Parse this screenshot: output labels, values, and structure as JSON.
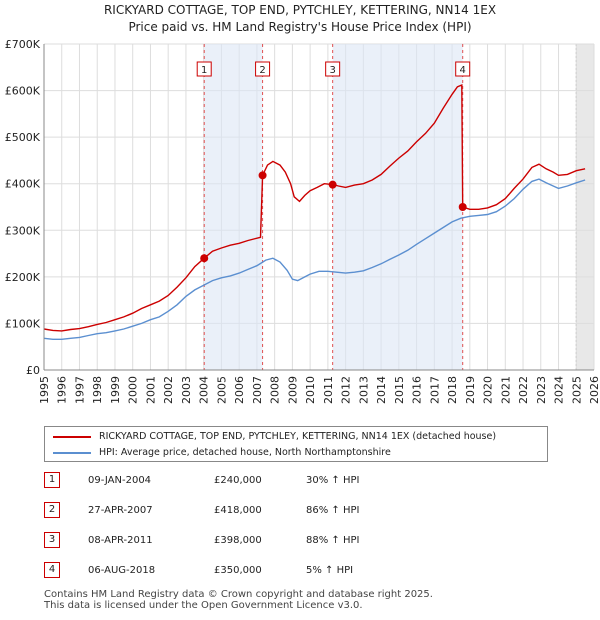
{
  "chart_data": {
    "type": "line",
    "title": "RICKYARD COTTAGE, TOP END, PYTCHLEY, KETTERING, NN14 1EX",
    "subtitle": "Price paid vs. HM Land Registry's House Price Index (HPI)",
    "xlim": [
      1995,
      2026
    ],
    "ylim": [
      0,
      700000
    ],
    "x_ticks": [
      1995,
      1996,
      1997,
      1998,
      1999,
      2000,
      2001,
      2002,
      2003,
      2004,
      2005,
      2006,
      2007,
      2008,
      2009,
      2010,
      2011,
      2012,
      2013,
      2014,
      2015,
      2016,
      2017,
      2018,
      2019,
      2020,
      2021,
      2022,
      2023,
      2024,
      2025,
      2026
    ],
    "y_ticks": [
      0,
      100000,
      200000,
      300000,
      400000,
      500000,
      600000,
      700000
    ],
    "y_tick_labels": [
      "£0",
      "£100K",
      "£200K",
      "£300K",
      "£400K",
      "£500K",
      "£600K",
      "£700K"
    ],
    "grid": true,
    "series": [
      {
        "name": "RICKYARD COTTAGE, TOP END, PYTCHLEY, KETTERING, NN14 1EX (detached house)",
        "color": "#cc0000",
        "points": [
          [
            1995.0,
            88000
          ],
          [
            1995.5,
            85000
          ],
          [
            1996.0,
            84000
          ],
          [
            1996.5,
            87000
          ],
          [
            1997.0,
            89000
          ],
          [
            1997.5,
            93000
          ],
          [
            1998.0,
            98000
          ],
          [
            1998.5,
            102000
          ],
          [
            1999.0,
            108000
          ],
          [
            1999.5,
            114000
          ],
          [
            2000.0,
            122000
          ],
          [
            2000.5,
            132000
          ],
          [
            2001.0,
            140000
          ],
          [
            2001.5,
            148000
          ],
          [
            2002.0,
            160000
          ],
          [
            2002.5,
            178000
          ],
          [
            2003.0,
            198000
          ],
          [
            2003.5,
            222000
          ],
          [
            2004.03,
            240000
          ],
          [
            2004.5,
            255000
          ],
          [
            2005.0,
            262000
          ],
          [
            2005.5,
            268000
          ],
          [
            2006.0,
            272000
          ],
          [
            2006.5,
            278000
          ],
          [
            2007.2,
            285000
          ],
          [
            2007.32,
            418000
          ],
          [
            2007.6,
            440000
          ],
          [
            2007.9,
            448000
          ],
          [
            2008.3,
            440000
          ],
          [
            2008.6,
            425000
          ],
          [
            2008.9,
            400000
          ],
          [
            2009.1,
            372000
          ],
          [
            2009.4,
            362000
          ],
          [
            2009.7,
            375000
          ],
          [
            2010.0,
            385000
          ],
          [
            2010.4,
            392000
          ],
          [
            2010.8,
            400000
          ],
          [
            2011.27,
            398000
          ],
          [
            2011.6,
            395000
          ],
          [
            2012.0,
            392000
          ],
          [
            2012.5,
            397000
          ],
          [
            2013.0,
            400000
          ],
          [
            2013.5,
            408000
          ],
          [
            2014.0,
            420000
          ],
          [
            2014.5,
            438000
          ],
          [
            2015.0,
            455000
          ],
          [
            2015.5,
            470000
          ],
          [
            2016.0,
            490000
          ],
          [
            2016.5,
            508000
          ],
          [
            2017.0,
            530000
          ],
          [
            2017.5,
            562000
          ],
          [
            2018.0,
            592000
          ],
          [
            2018.3,
            608000
          ],
          [
            2018.55,
            612000
          ],
          [
            2018.6,
            350000
          ],
          [
            2019.0,
            345000
          ],
          [
            2019.5,
            345000
          ],
          [
            2020.0,
            348000
          ],
          [
            2020.5,
            355000
          ],
          [
            2021.0,
            368000
          ],
          [
            2021.5,
            390000
          ],
          [
            2022.0,
            410000
          ],
          [
            2022.5,
            435000
          ],
          [
            2022.9,
            442000
          ],
          [
            2023.3,
            432000
          ],
          [
            2023.7,
            425000
          ],
          [
            2024.0,
            418000
          ],
          [
            2024.5,
            420000
          ],
          [
            2025.0,
            428000
          ],
          [
            2025.5,
            432000
          ]
        ]
      },
      {
        "name": "HPI: Average price, detached house, North Northamptonshire",
        "color": "#5b8fd0",
        "points": [
          [
            1995.0,
            68000
          ],
          [
            1995.5,
            66000
          ],
          [
            1996.0,
            66000
          ],
          [
            1996.5,
            68000
          ],
          [
            1997.0,
            70000
          ],
          [
            1997.5,
            74000
          ],
          [
            1998.0,
            78000
          ],
          [
            1998.5,
            80000
          ],
          [
            1999.0,
            84000
          ],
          [
            1999.5,
            88000
          ],
          [
            2000.0,
            94000
          ],
          [
            2000.5,
            100000
          ],
          [
            2001.0,
            108000
          ],
          [
            2001.5,
            114000
          ],
          [
            2002.0,
            126000
          ],
          [
            2002.5,
            140000
          ],
          [
            2003.0,
            158000
          ],
          [
            2003.5,
            172000
          ],
          [
            2004.0,
            182000
          ],
          [
            2004.5,
            192000
          ],
          [
            2005.0,
            198000
          ],
          [
            2005.5,
            202000
          ],
          [
            2006.0,
            208000
          ],
          [
            2006.5,
            216000
          ],
          [
            2007.0,
            224000
          ],
          [
            2007.5,
            236000
          ],
          [
            2007.9,
            240000
          ],
          [
            2008.3,
            232000
          ],
          [
            2008.7,
            214000
          ],
          [
            2009.0,
            195000
          ],
          [
            2009.3,
            192000
          ],
          [
            2009.7,
            200000
          ],
          [
            2010.0,
            206000
          ],
          [
            2010.5,
            212000
          ],
          [
            2011.0,
            212000
          ],
          [
            2011.5,
            210000
          ],
          [
            2012.0,
            208000
          ],
          [
            2012.5,
            210000
          ],
          [
            2013.0,
            213000
          ],
          [
            2013.5,
            220000
          ],
          [
            2014.0,
            228000
          ],
          [
            2014.5,
            238000
          ],
          [
            2015.0,
            247000
          ],
          [
            2015.5,
            257000
          ],
          [
            2016.0,
            270000
          ],
          [
            2016.5,
            282000
          ],
          [
            2017.0,
            294000
          ],
          [
            2017.5,
            306000
          ],
          [
            2018.0,
            318000
          ],
          [
            2018.5,
            326000
          ],
          [
            2019.0,
            330000
          ],
          [
            2019.5,
            332000
          ],
          [
            2020.0,
            334000
          ],
          [
            2020.5,
            340000
          ],
          [
            2021.0,
            352000
          ],
          [
            2021.5,
            368000
          ],
          [
            2022.0,
            388000
          ],
          [
            2022.5,
            405000
          ],
          [
            2022.9,
            410000
          ],
          [
            2023.3,
            402000
          ],
          [
            2023.7,
            395000
          ],
          [
            2024.0,
            390000
          ],
          [
            2024.5,
            395000
          ],
          [
            2025.0,
            402000
          ],
          [
            2025.5,
            408000
          ]
        ]
      }
    ],
    "sales": [
      {
        "num": "1",
        "x": 2004.03,
        "value": 240000,
        "date": "09-JAN-2004",
        "price": "£240,000",
        "hpi": "30% ↑ HPI"
      },
      {
        "num": "2",
        "x": 2007.32,
        "value": 418000,
        "date": "27-APR-2007",
        "price": "£418,000",
        "hpi": "86% ↑ HPI"
      },
      {
        "num": "3",
        "x": 2011.27,
        "value": 398000,
        "date": "08-APR-2011",
        "price": "£398,000",
        "hpi": "88% ↑ HPI"
      },
      {
        "num": "4",
        "x": 2018.6,
        "value": 350000,
        "date": "06-AUG-2018",
        "price": "£350,000",
        "hpi": "5% ↑ HPI"
      }
    ],
    "shade_from": 2025.0
  },
  "legend": {
    "property_label": "RICKYARD COTTAGE, TOP END, PYTCHLEY, KETTERING, NN14 1EX (detached house)",
    "hpi_label": "HPI: Average price, detached house, North Northamptonshire",
    "property_color": "#cc0000",
    "hpi_color": "#5b8fd0"
  },
  "footer": {
    "line1": "Contains HM Land Registry data © Crown copyright and database right 2025.",
    "line2": "This data is licensed under the Open Government Licence v3.0."
  }
}
